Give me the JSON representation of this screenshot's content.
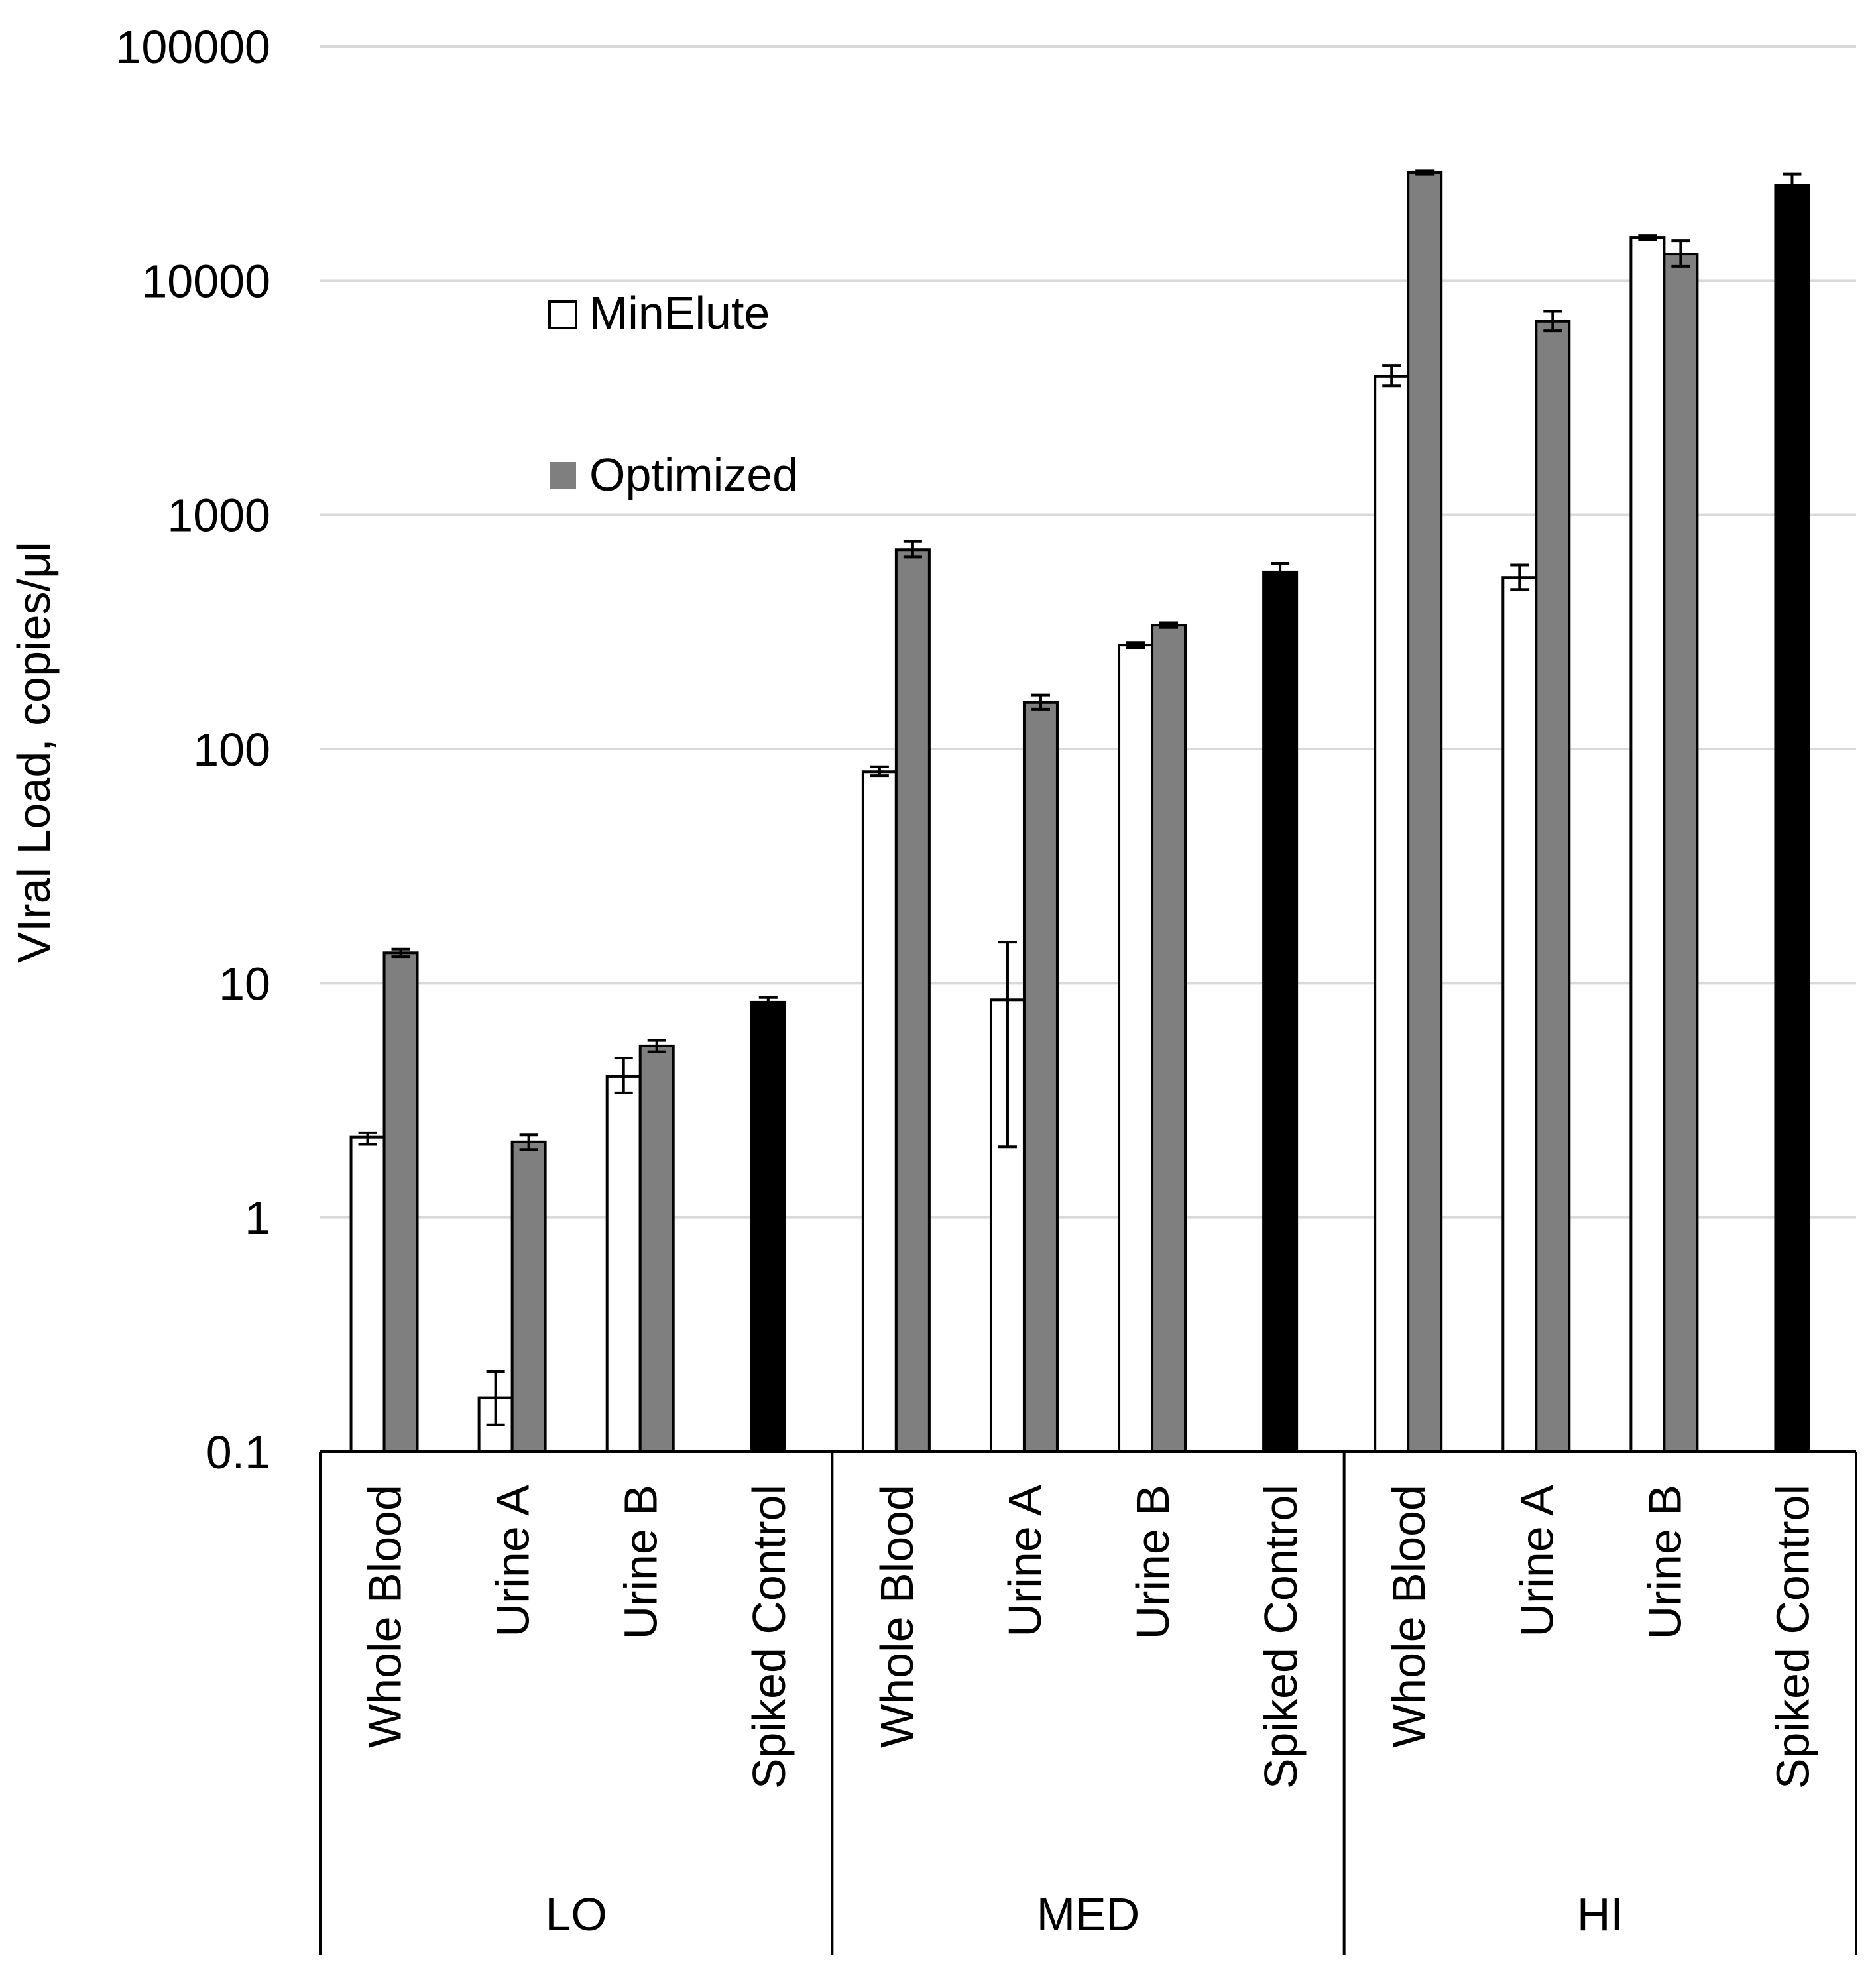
{
  "chart_data": {
    "type": "bar",
    "yscale": "log",
    "ylabel": "VIral Load, copies/μl",
    "ylim": [
      0.1,
      100000
    ],
    "yticks": [
      "100000",
      "10000",
      "1000",
      "100",
      "10",
      "1",
      "0.1"
    ],
    "ytick_values": [
      100000,
      10000,
      1000,
      100,
      10,
      1,
      0.1
    ],
    "grid": true,
    "legend": [
      "MinElute",
      "Optimized"
    ],
    "legend_position": "upper-left",
    "groups": [
      {
        "name": "LO",
        "categories": [
          {
            "label": "Whole Blood",
            "bars": [
              {
                "series": "MinElute",
                "value": 2.2,
                "err_low": 2.05,
                "err_high": 2.3
              },
              {
                "series": "Optimized",
                "value": 13.5,
                "err_low": 13.0,
                "err_high": 14.0
              }
            ]
          },
          {
            "label": "Urine A",
            "bars": [
              {
                "series": "MinElute",
                "value": 0.17,
                "err_low": 0.13,
                "err_high": 0.22
              },
              {
                "series": "Optimized",
                "value": 2.1,
                "err_low": 1.95,
                "err_high": 2.25
              }
            ]
          },
          {
            "label": "Urine B",
            "bars": [
              {
                "series": "MinElute",
                "value": 4.0,
                "err_low": 3.4,
                "err_high": 4.8
              },
              {
                "series": "Optimized",
                "value": 5.4,
                "err_low": 5.1,
                "err_high": 5.7
              }
            ]
          },
          {
            "label": "Spiked Control",
            "bars": [
              {
                "series": "Control",
                "value": 8.3,
                "err_low": 7.9,
                "err_high": 8.7
              }
            ]
          }
        ]
      },
      {
        "name": "MED",
        "categories": [
          {
            "label": "Whole Blood",
            "bars": [
              {
                "series": "MinElute",
                "value": 80,
                "err_low": 77,
                "err_high": 84
              },
              {
                "series": "Optimized",
                "value": 710,
                "err_low": 660,
                "err_high": 770
              }
            ]
          },
          {
            "label": "Urine A",
            "bars": [
              {
                "series": "MinElute",
                "value": 8.5,
                "err_low": 2.0,
                "err_high": 15.0
              },
              {
                "series": "Optimized",
                "value": 158,
                "err_low": 148,
                "err_high": 170
              }
            ]
          },
          {
            "label": "Urine B",
            "bars": [
              {
                "series": "MinElute",
                "value": 278,
                "err_low": 271,
                "err_high": 285
              },
              {
                "series": "Optimized",
                "value": 338,
                "err_low": 330,
                "err_high": 346
              }
            ]
          },
          {
            "label": "Spiked Control",
            "bars": [
              {
                "series": "Control",
                "value": 570,
                "err_low": 530,
                "err_high": 620
              }
            ]
          }
        ]
      },
      {
        "name": "HI",
        "categories": [
          {
            "label": "Whole Blood",
            "bars": [
              {
                "series": "MinElute",
                "value": 3900,
                "err_low": 3550,
                "err_high": 4350
              },
              {
                "series": "Optimized",
                "value": 29000,
                "err_low": 28500,
                "err_high": 29500
              }
            ]
          },
          {
            "label": "Urine A",
            "bars": [
              {
                "series": "MinElute",
                "value": 540,
                "err_low": 480,
                "err_high": 610
              },
              {
                "series": "Optimized",
                "value": 6700,
                "err_low": 6100,
                "err_high": 7400
              }
            ]
          },
          {
            "label": "Urine B",
            "bars": [
              {
                "series": "MinElute",
                "value": 15300,
                "err_low": 15000,
                "err_high": 15600
              },
              {
                "series": "Optimized",
                "value": 13000,
                "err_low": 11500,
                "err_high": 14800
              }
            ]
          },
          {
            "label": "Spiked Control",
            "bars": [
              {
                "series": "Control",
                "value": 25500,
                "err_low": 23500,
                "err_high": 28500
              }
            ]
          }
        ]
      }
    ],
    "colors": {
      "MinElute": "#ffffff",
      "Optimized": "#7f7f7f",
      "Control": "#000000",
      "grid": "#d9d9d9",
      "axis": "#000000"
    }
  }
}
